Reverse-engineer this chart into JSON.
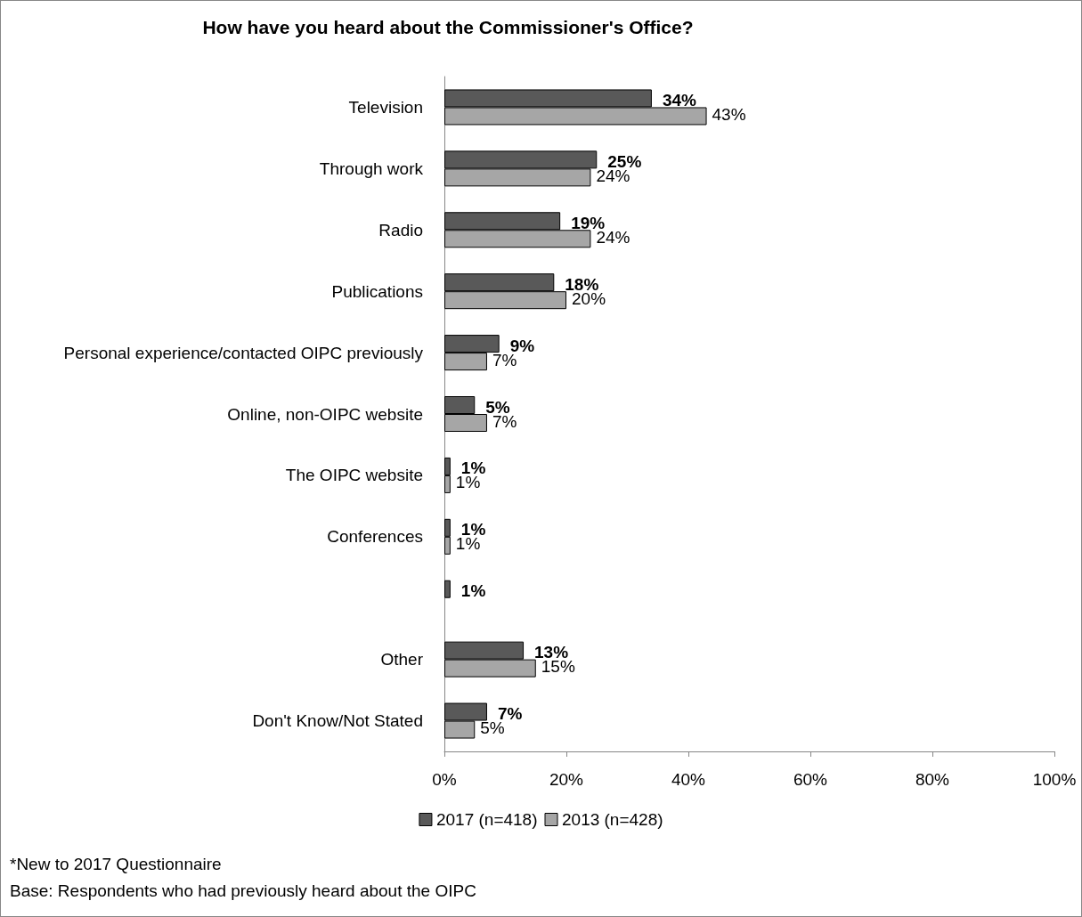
{
  "chart_data": {
    "type": "bar",
    "orientation": "horizontal",
    "title": "How have you heard about the Commissioner's Office?",
    "categories": [
      "Television",
      "Through work",
      "Radio",
      "Publications",
      "Personal experience/contacted OIPC previously",
      "Online, non-OIPC website",
      "The OIPC website",
      "Conferences",
      null,
      "Other",
      "Don't Know/Not Stated"
    ],
    "series": [
      {
        "name": "2017 (n=418)",
        "color": "#595959",
        "values": [
          34,
          25,
          19,
          18,
          9,
          5,
          1,
          1,
          1,
          13,
          7
        ],
        "value_labels": [
          "34%",
          "25%",
          "19%",
          "18%",
          "9%",
          "5%",
          "1%",
          "1%",
          "1%",
          "13%",
          "7%"
        ]
      },
      {
        "name": "2013 (n=428)",
        "color": "#a6a6a6",
        "values": [
          43,
          24,
          24,
          20,
          7,
          7,
          1,
          1,
          null,
          15,
          5
        ],
        "value_labels": [
          "43%",
          "24%",
          "24%",
          "20%",
          "7%",
          "7%",
          "1%",
          "1%",
          null,
          "15%",
          "5%"
        ]
      }
    ],
    "xlim": [
      0,
      100
    ],
    "xticks": [
      {
        "value": 0,
        "label": "0%"
      },
      {
        "value": 20,
        "label": "20%"
      },
      {
        "value": 40,
        "label": "40%"
      },
      {
        "value": 60,
        "label": "60%"
      },
      {
        "value": 80,
        "label": "80%"
      },
      {
        "value": 100,
        "label": "100%"
      }
    ],
    "grid": false,
    "legend": "bottom",
    "annotations": [
      "*New to 2017 Questionnaire",
      "Base: Respondents who had previously heard about the OIPC"
    ]
  }
}
